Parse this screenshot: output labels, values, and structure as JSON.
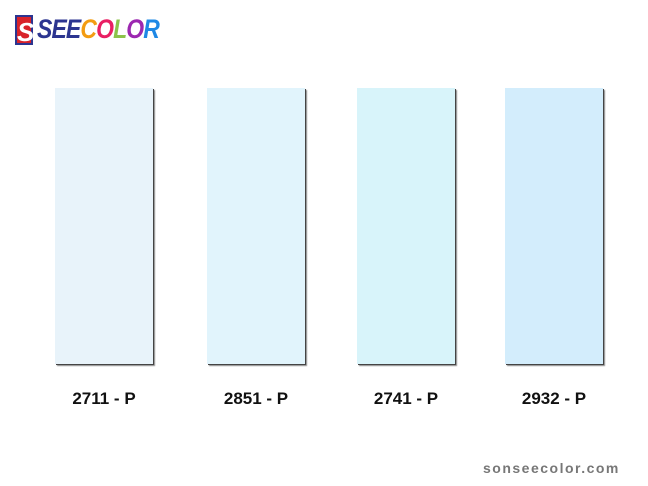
{
  "logo": {
    "mark": "S",
    "parts": [
      {
        "text": "SEE",
        "color": "#2c3590"
      },
      {
        "text": "C",
        "color": "#f39c12"
      },
      {
        "text": "O",
        "color": "#e91e63"
      },
      {
        "text": "L",
        "color": "#8bc34a"
      },
      {
        "text": "O",
        "color": "#9c27b0"
      },
      {
        "text": "R",
        "color": "#1e88e5"
      }
    ]
  },
  "swatches": [
    {
      "code": "2711 - P",
      "color": "#E8F3FA"
    },
    {
      "code": "2851 - P",
      "color": "#E1F4FC"
    },
    {
      "code": "2741 - P",
      "color": "#D8F4FA"
    },
    {
      "code": "2932 - P",
      "color": "#D3EDFC"
    }
  ],
  "footer": "sonseecolor.com"
}
